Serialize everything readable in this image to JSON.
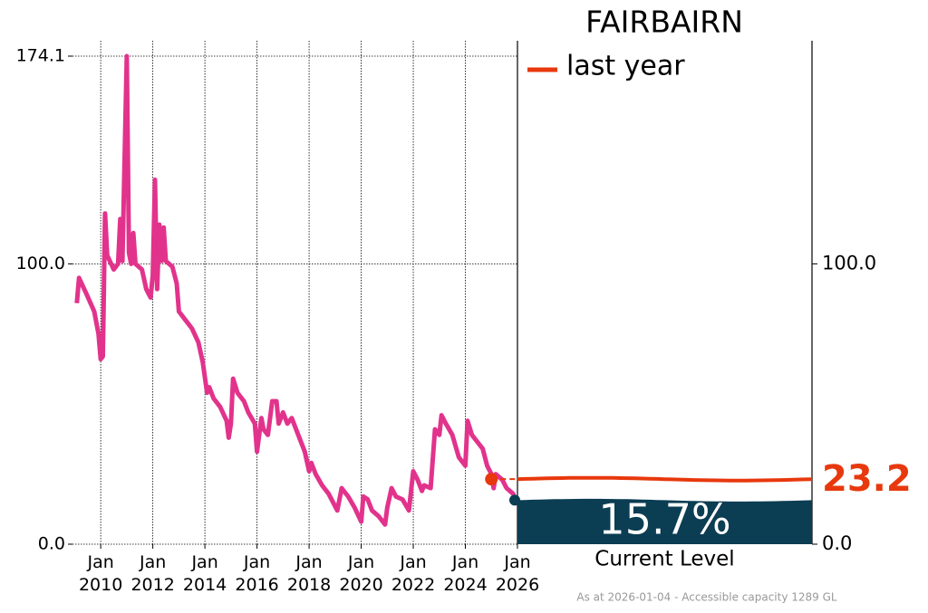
{
  "chart_data": {
    "type": "line",
    "title": "FAIRBAIRN",
    "footnote": "As at 2026-01-04 - Accessible capacity 1289 GL",
    "x": [
      "2009-02",
      "2009-03",
      "2009-06",
      "2009-10",
      "2009-12",
      "2010-01",
      "2010-02",
      "2010-03",
      "2010-04",
      "2010-07",
      "2010-09",
      "2010-10",
      "2010-11",
      "2011-01",
      "2011-02",
      "2011-03",
      "2011-04",
      "2011-05",
      "2011-08",
      "2011-10",
      "2011-12",
      "2012-01",
      "2012-02",
      "2012-03",
      "2012-04",
      "2012-05",
      "2012-06",
      "2012-07",
      "2012-10",
      "2012-12",
      "2013-01",
      "2013-04",
      "2013-07",
      "2013-10",
      "2013-12",
      "2014-02",
      "2014-03",
      "2014-05",
      "2014-08",
      "2014-11",
      "2014-12",
      "2015-01",
      "2015-02",
      "2015-04",
      "2015-07",
      "2015-09",
      "2015-12",
      "2016-01",
      "2016-03",
      "2016-04",
      "2016-06",
      "2016-08",
      "2016-10",
      "2016-11",
      "2017-01",
      "2017-03",
      "2017-05",
      "2017-08",
      "2017-11",
      "2018-01",
      "2018-02",
      "2018-04",
      "2018-07",
      "2018-10",
      "2019-02",
      "2019-04",
      "2019-07",
      "2019-10",
      "2020-01",
      "2020-02",
      "2020-04",
      "2020-06",
      "2020-09",
      "2020-12",
      "2021-01",
      "2021-03",
      "2021-05",
      "2021-08",
      "2021-11",
      "2022-01",
      "2022-03",
      "2022-05",
      "2022-06",
      "2022-09",
      "2022-11",
      "2023-01",
      "2023-02",
      "2023-04",
      "2023-07",
      "2023-10",
      "2023-12",
      "2024-01",
      "2024-02",
      "2024-04",
      "2024-07",
      "2024-09",
      "2024-11",
      "2025-01",
      "2025-02",
      "2025-03",
      "2025-06",
      "2025-08",
      "2025-11",
      "2025-12"
    ],
    "series": [
      {
        "color": "#e2338c",
        "values": [
          86,
          95,
          90,
          83,
          75,
          66,
          67,
          118,
          103,
          98,
          100,
          116,
          101,
          174.1,
          104,
          100,
          111,
          100,
          98,
          91,
          88,
          96,
          130,
          91,
          114,
          101,
          113,
          101,
          99,
          93,
          83,
          80,
          77,
          72,
          65,
          54,
          56,
          52,
          49,
          44,
          38,
          43,
          59,
          54,
          51,
          47,
          43,
          33,
          45,
          41,
          39,
          51,
          51,
          43,
          47,
          43,
          45,
          39,
          33,
          26,
          29,
          25,
          21,
          18,
          12,
          20,
          17,
          13,
          8,
          17,
          16,
          12,
          10,
          7,
          13,
          20,
          17,
          16,
          12,
          26,
          23,
          19,
          21,
          20,
          41,
          39,
          46,
          43,
          39,
          31,
          29,
          28,
          44,
          39,
          36,
          34,
          28,
          25,
          20,
          25,
          23,
          20,
          18,
          16
        ]
      }
    ],
    "xlim": [
      "2008-12",
      "2026-01"
    ],
    "xticks": [
      {
        "value": "2010-01",
        "label": "Jan 2010"
      },
      {
        "value": "2012-01",
        "label": "Jan 2012"
      },
      {
        "value": "2014-01",
        "label": "Jan 2014"
      },
      {
        "value": "2016-01",
        "label": "Jan 2016"
      },
      {
        "value": "2018-01",
        "label": "Jan 2018"
      },
      {
        "value": "2020-01",
        "label": "Jan 2020"
      },
      {
        "value": "2022-01",
        "label": "Jan 2022"
      },
      {
        "value": "2024-01",
        "label": "Jan 2024"
      },
      {
        "value": "2026-01",
        "label": "Jan 2026"
      }
    ],
    "ylim": [
      0,
      174.1
    ],
    "yticks": [
      {
        "value": 0,
        "label": "0.0"
      },
      {
        "value": 100,
        "label": "100.0"
      },
      174.1
    ],
    "y2lim": [
      0,
      174.1
    ],
    "y2ticks": [
      {
        "value": 0,
        "label": "0.0"
      },
      {
        "value": 100,
        "label": "100.0"
      }
    ],
    "grid": true,
    "last_year": {
      "name": "last year",
      "x": "2025-01",
      "value": 23.2,
      "color": "#e8380d"
    },
    "current_level": {
      "value": 15.7,
      "label": "15.7%",
      "caption": "Current Level",
      "color": "#0b3d53"
    }
  }
}
